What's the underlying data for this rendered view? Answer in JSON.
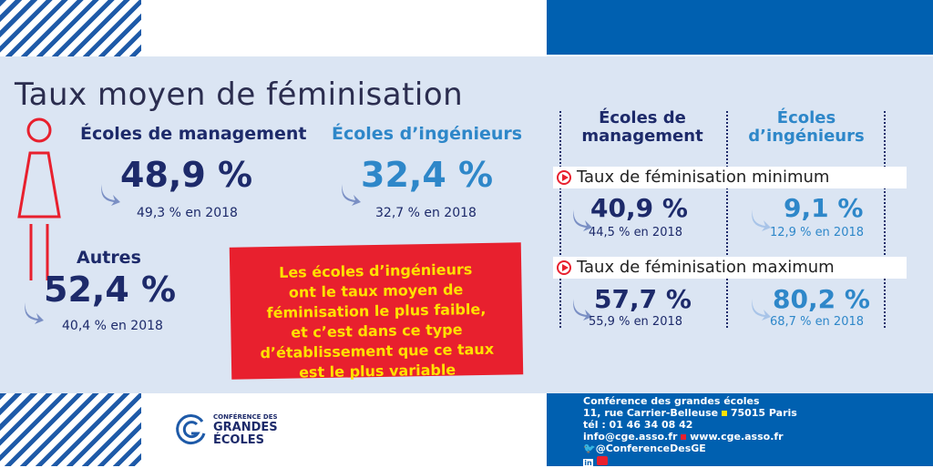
{
  "title": "Taux moyen de féminisation",
  "management": {
    "label": "Écoles de management",
    "value": "48,9 %",
    "prev": "49,3 % en 2018"
  },
  "ingenieurs": {
    "label": "Écoles d’ingénieurs",
    "value": "32,4 %",
    "prev": "32,7 % en 2018"
  },
  "autres": {
    "label": "Autres",
    "value": "52,4 %",
    "prev": "40,4 % en 2018"
  },
  "callout": [
    "Les écoles d’ingénieurs",
    "ont le taux moyen de",
    "féminisation le plus faible,",
    "et c’est dans ce type",
    "d’établissement que ce taux",
    "est le plus variable"
  ],
  "table": {
    "col1": [
      "Écoles de",
      "management"
    ],
    "col2": [
      "Écoles",
      "d’ingénieurs"
    ],
    "min_label": "Taux de féminisation minimum",
    "max_label": "Taux de féminisation maximum",
    "min": {
      "management": {
        "value": "40,9 %",
        "prev": "44,5 % en 2018"
      },
      "ingenieurs": {
        "value": "9,1 %",
        "prev": "12,9 % en 2018"
      }
    },
    "max": {
      "management": {
        "value": "57,7 %",
        "prev": "55,9 % en 2018"
      },
      "ingenieurs": {
        "value": "80,2 %",
        "prev": "68,7 % en 2018"
      }
    }
  },
  "logo": {
    "line1": "CONFÉRENCE DES",
    "line2": "GRANDES",
    "line3": "ÉCOLES"
  },
  "footer": {
    "name": "Conférence des grandes écoles",
    "address": "11, rue Carrier-Belleuse",
    "city": "75015 Paris",
    "tel": "tél : 01 46 34 08 42",
    "email": "info@cge.asso.fr",
    "web": "www.cge.asso.fr",
    "twitter": "@ConferenceDesGE"
  },
  "colors": {
    "navy": "#1d2a6a",
    "blue": "#2e87c9",
    "red": "#e8202e",
    "yellow": "#ffe100",
    "band": "#0060b0"
  }
}
